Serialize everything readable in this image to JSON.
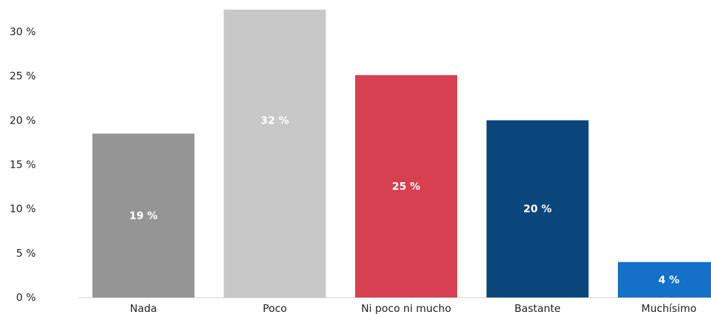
{
  "chart_data": {
    "type": "bar",
    "categories": [
      "Nada",
      "Poco",
      "Ni poco ni mucho",
      "Bastante",
      "Muchísimo"
    ],
    "values": [
      18.5,
      32.5,
      25.1,
      20.0,
      4.0
    ],
    "data_labels": [
      "19 %",
      "32 %",
      "25 %",
      "20 %",
      "4 %"
    ],
    "colors": [
      "#959595",
      "#c8c8c8",
      "#d64050",
      "#0a467c",
      "#1470c8"
    ],
    "label_positions": [
      "middle",
      "upper",
      "middle",
      "middle",
      "middle"
    ],
    "y_ticks": [
      0,
      5,
      10,
      15,
      20,
      25,
      30
    ],
    "y_tick_labels": [
      "0 %",
      "5 %",
      "10 %",
      "15 %",
      "20 %",
      "25 %",
      "30 %"
    ],
    "ylim": [
      0,
      34
    ],
    "grid": false,
    "title": "",
    "xlabel": "",
    "ylabel": ""
  }
}
